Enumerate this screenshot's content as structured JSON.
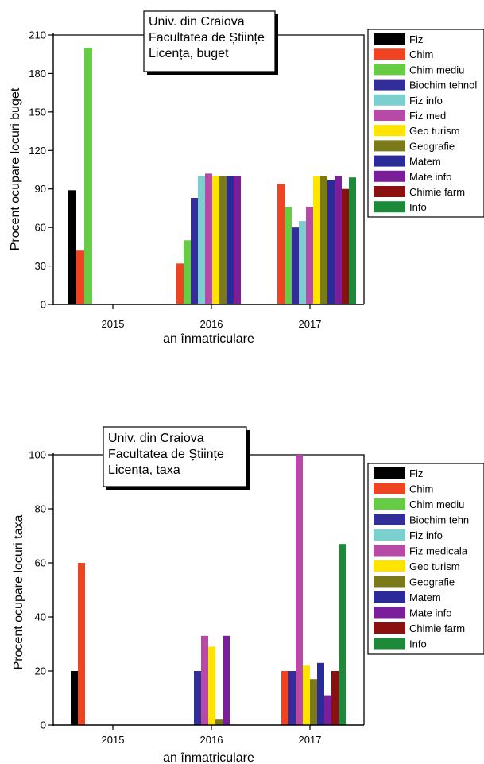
{
  "chart_data": [
    {
      "type": "bar",
      "annotation": [
        "Univ. din Craiova",
        "Facultatea de Științe",
        "Licența, buget"
      ],
      "xlabel": "an înmatriculare",
      "ylabel": "Procent ocupare locuri buget",
      "ylim": [
        0,
        210
      ],
      "yticks": [
        0,
        30,
        60,
        90,
        120,
        150,
        180,
        210
      ],
      "categories": [
        "2015",
        "2016",
        "2017"
      ],
      "grid": false,
      "legend_position": "right",
      "series": [
        {
          "name": "Fiz",
          "color": "#000000",
          "values": [
            89,
            null,
            null
          ]
        },
        {
          "name": "Chim",
          "color": "#ee4422",
          "values": [
            42,
            32,
            94
          ]
        },
        {
          "name": "Chim mediu",
          "color": "#66cc44",
          "values": [
            200,
            50,
            76
          ]
        },
        {
          "name": "Biochim tehnol",
          "color": "#332d99",
          "values": [
            null,
            83,
            60
          ]
        },
        {
          "name": "Fiz info",
          "color": "#7ccfcf",
          "values": [
            null,
            100,
            65
          ]
        },
        {
          "name": "Fiz med",
          "color": "#b64aa6",
          "values": [
            null,
            102,
            76
          ]
        },
        {
          "name": "Geo turism",
          "color": "#ffe400",
          "values": [
            null,
            100,
            100
          ]
        },
        {
          "name": "Geografie",
          "color": "#7a7a1a",
          "values": [
            null,
            100,
            100
          ]
        },
        {
          "name": "Matem",
          "color": "#2a2a99",
          "values": [
            null,
            100,
            97
          ]
        },
        {
          "name": "Mate info",
          "color": "#7a1f99",
          "values": [
            null,
            100,
            100
          ]
        },
        {
          "name": "Chimie farm",
          "color": "#8b1111",
          "values": [
            null,
            null,
            90
          ]
        },
        {
          "name": "Info",
          "color": "#1d8a3a",
          "values": [
            null,
            null,
            99
          ]
        }
      ]
    },
    {
      "type": "bar",
      "annotation": [
        "Univ. din Craiova",
        "Facultatea de Științe",
        "Licența, taxa"
      ],
      "xlabel": "an înmatriculare",
      "ylabel": "Procent ocupare locuri taxa",
      "ylim": [
        0,
        100
      ],
      "yticks": [
        0,
        20,
        40,
        60,
        80,
        100
      ],
      "categories": [
        "2015",
        "2016",
        "2017"
      ],
      "grid": false,
      "legend_position": "right",
      "series": [
        {
          "name": "Fiz",
          "color": "#000000",
          "values": [
            20,
            null,
            null
          ]
        },
        {
          "name": "Chim",
          "color": "#ee4422",
          "values": [
            60,
            null,
            20
          ]
        },
        {
          "name": "Chim mediu",
          "color": "#66cc44",
          "values": [
            null,
            null,
            null
          ]
        },
        {
          "name": "Biochim tehn",
          "color": "#332d99",
          "values": [
            null,
            20,
            20
          ]
        },
        {
          "name": "Fiz info",
          "color": "#7ccfcf",
          "values": [
            null,
            null,
            null
          ]
        },
        {
          "name": "Fiz medicala",
          "color": "#b64aa6",
          "values": [
            null,
            33,
            100
          ]
        },
        {
          "name": "Geo turism",
          "color": "#ffe400",
          "values": [
            null,
            29,
            22
          ]
        },
        {
          "name": "Geografie",
          "color": "#7a7a1a",
          "values": [
            null,
            2,
            17
          ]
        },
        {
          "name": "Matem",
          "color": "#2a2a99",
          "values": [
            null,
            null,
            23
          ]
        },
        {
          "name": "Mate info",
          "color": "#7a1f99",
          "values": [
            null,
            33,
            11
          ]
        },
        {
          "name": "Chimie farm",
          "color": "#8b1111",
          "values": [
            null,
            null,
            20
          ]
        },
        {
          "name": "Info",
          "color": "#1d8a3a",
          "values": [
            null,
            null,
            67
          ]
        }
      ]
    }
  ]
}
